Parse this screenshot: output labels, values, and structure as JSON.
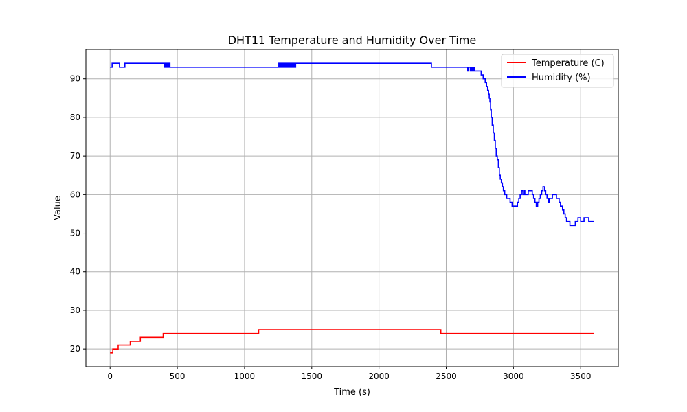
{
  "chart_data": {
    "type": "line",
    "title": "DHT11 Temperature and Humidity Over Time",
    "xlabel": "Time (s)",
    "ylabel": "Value",
    "xlim": [
      -180,
      3780
    ],
    "ylim": [
      15.4,
      97.6
    ],
    "xticks": [
      0,
      500,
      1000,
      1500,
      2000,
      2500,
      3000,
      3500
    ],
    "yticks": [
      20,
      30,
      40,
      50,
      60,
      70,
      80,
      90
    ],
    "grid": true,
    "legend_position": "top-right",
    "series": [
      {
        "name": "Temperature (C)",
        "color": "#ff0000",
        "step": true,
        "points": [
          [
            0,
            19
          ],
          [
            20,
            19
          ],
          [
            20,
            20
          ],
          [
            60,
            20
          ],
          [
            60,
            21
          ],
          [
            150,
            21
          ],
          [
            150,
            22
          ],
          [
            225,
            22
          ],
          [
            225,
            23
          ],
          [
            395,
            23
          ],
          [
            395,
            24
          ],
          [
            1105,
            24
          ],
          [
            1105,
            25
          ],
          [
            2460,
            25
          ],
          [
            2460,
            24
          ],
          [
            3600,
            24
          ]
        ]
      },
      {
        "name": "Humidity (%)",
        "color": "#0000ff",
        "step": true,
        "points": [
          [
            0,
            93
          ],
          [
            15,
            93
          ],
          [
            15,
            94
          ],
          [
            70,
            94
          ],
          [
            70,
            93
          ],
          [
            110,
            93
          ],
          [
            110,
            94
          ],
          [
            405,
            94
          ],
          [
            405,
            93
          ],
          [
            410,
            93
          ],
          [
            410,
            94
          ],
          [
            415,
            94
          ],
          [
            415,
            93
          ],
          [
            420,
            93
          ],
          [
            420,
            94
          ],
          [
            425,
            94
          ],
          [
            425,
            93
          ],
          [
            430,
            93
          ],
          [
            430,
            94
          ],
          [
            435,
            94
          ],
          [
            435,
            93
          ],
          [
            440,
            93
          ],
          [
            440,
            94
          ],
          [
            445,
            94
          ],
          [
            445,
            93
          ],
          [
            1255,
            93
          ],
          [
            1255,
            94
          ],
          [
            1262,
            94
          ],
          [
            1262,
            93
          ],
          [
            1270,
            93
          ],
          [
            1270,
            94
          ],
          [
            1278,
            94
          ],
          [
            1278,
            93
          ],
          [
            1286,
            93
          ],
          [
            1286,
            94
          ],
          [
            1294,
            94
          ],
          [
            1294,
            93
          ],
          [
            1302,
            93
          ],
          [
            1302,
            94
          ],
          [
            1310,
            94
          ],
          [
            1310,
            93
          ],
          [
            1318,
            93
          ],
          [
            1318,
            94
          ],
          [
            1326,
            94
          ],
          [
            1326,
            93
          ],
          [
            1334,
            93
          ],
          [
            1334,
            94
          ],
          [
            1342,
            94
          ],
          [
            1342,
            93
          ],
          [
            1350,
            93
          ],
          [
            1350,
            94
          ],
          [
            1358,
            94
          ],
          [
            1358,
            93
          ],
          [
            1366,
            93
          ],
          [
            1366,
            94
          ],
          [
            1374,
            94
          ],
          [
            1374,
            93
          ],
          [
            1380,
            93
          ],
          [
            1380,
            94
          ],
          [
            2390,
            94
          ],
          [
            2390,
            93
          ],
          [
            2660,
            93
          ],
          [
            2660,
            92
          ],
          [
            2668,
            92
          ],
          [
            2668,
            93
          ],
          [
            2680,
            93
          ],
          [
            2680,
            92
          ],
          [
            2690,
            92
          ],
          [
            2690,
            93
          ],
          [
            2698,
            93
          ],
          [
            2698,
            92
          ],
          [
            2705,
            92
          ],
          [
            2705,
            93
          ],
          [
            2712,
            93
          ],
          [
            2712,
            92
          ],
          [
            2760,
            92
          ],
          [
            2760,
            91
          ],
          [
            2775,
            91
          ],
          [
            2775,
            90
          ],
          [
            2790,
            90
          ],
          [
            2790,
            89
          ],
          [
            2800,
            89
          ],
          [
            2800,
            88
          ],
          [
            2808,
            88
          ],
          [
            2808,
            87
          ],
          [
            2815,
            87
          ],
          [
            2815,
            86
          ],
          [
            2820,
            86
          ],
          [
            2820,
            85
          ],
          [
            2825,
            85
          ],
          [
            2825,
            84
          ],
          [
            2830,
            84
          ],
          [
            2830,
            82
          ],
          [
            2835,
            82
          ],
          [
            2835,
            80
          ],
          [
            2842,
            80
          ],
          [
            2842,
            78
          ],
          [
            2850,
            78
          ],
          [
            2850,
            76
          ],
          [
            2858,
            76
          ],
          [
            2858,
            74
          ],
          [
            2865,
            74
          ],
          [
            2865,
            72
          ],
          [
            2872,
            72
          ],
          [
            2872,
            70
          ],
          [
            2880,
            70
          ],
          [
            2880,
            69
          ],
          [
            2888,
            69
          ],
          [
            2888,
            67
          ],
          [
            2895,
            67
          ],
          [
            2895,
            65
          ],
          [
            2902,
            65
          ],
          [
            2902,
            64
          ],
          [
            2910,
            64
          ],
          [
            2910,
            63
          ],
          [
            2918,
            63
          ],
          [
            2918,
            62
          ],
          [
            2925,
            62
          ],
          [
            2925,
            61
          ],
          [
            2935,
            61
          ],
          [
            2935,
            60
          ],
          [
            2950,
            60
          ],
          [
            2950,
            59
          ],
          [
            2975,
            59
          ],
          [
            2975,
            58
          ],
          [
            2990,
            58
          ],
          [
            2990,
            57
          ],
          [
            3030,
            57
          ],
          [
            3030,
            58
          ],
          [
            3040,
            58
          ],
          [
            3040,
            59
          ],
          [
            3050,
            59
          ],
          [
            3050,
            60
          ],
          [
            3060,
            60
          ],
          [
            3060,
            61
          ],
          [
            3070,
            61
          ],
          [
            3070,
            60
          ],
          [
            3080,
            60
          ],
          [
            3080,
            61
          ],
          [
            3085,
            61
          ],
          [
            3085,
            60
          ],
          [
            3110,
            60
          ],
          [
            3110,
            61
          ],
          [
            3140,
            61
          ],
          [
            3140,
            60
          ],
          [
            3150,
            60
          ],
          [
            3150,
            59
          ],
          [
            3160,
            59
          ],
          [
            3160,
            58
          ],
          [
            3170,
            58
          ],
          [
            3170,
            57
          ],
          [
            3180,
            57
          ],
          [
            3180,
            58
          ],
          [
            3190,
            58
          ],
          [
            3190,
            59
          ],
          [
            3200,
            59
          ],
          [
            3200,
            60
          ],
          [
            3210,
            60
          ],
          [
            3210,
            61
          ],
          [
            3220,
            61
          ],
          [
            3220,
            62
          ],
          [
            3232,
            62
          ],
          [
            3232,
            61
          ],
          [
            3240,
            61
          ],
          [
            3240,
            60
          ],
          [
            3250,
            60
          ],
          [
            3250,
            59
          ],
          [
            3260,
            59
          ],
          [
            3260,
            58
          ],
          [
            3265,
            58
          ],
          [
            3265,
            59
          ],
          [
            3290,
            59
          ],
          [
            3290,
            60
          ],
          [
            3320,
            60
          ],
          [
            3320,
            59
          ],
          [
            3340,
            59
          ],
          [
            3340,
            58
          ],
          [
            3350,
            58
          ],
          [
            3350,
            57
          ],
          [
            3365,
            57
          ],
          [
            3365,
            56
          ],
          [
            3375,
            56
          ],
          [
            3375,
            55
          ],
          [
            3385,
            55
          ],
          [
            3385,
            54
          ],
          [
            3395,
            54
          ],
          [
            3395,
            53
          ],
          [
            3420,
            53
          ],
          [
            3420,
            52
          ],
          [
            3460,
            52
          ],
          [
            3460,
            53
          ],
          [
            3480,
            53
          ],
          [
            3480,
            54
          ],
          [
            3500,
            54
          ],
          [
            3500,
            53
          ],
          [
            3525,
            53
          ],
          [
            3525,
            54
          ],
          [
            3560,
            54
          ],
          [
            3560,
            53
          ],
          [
            3600,
            53
          ]
        ]
      }
    ]
  }
}
